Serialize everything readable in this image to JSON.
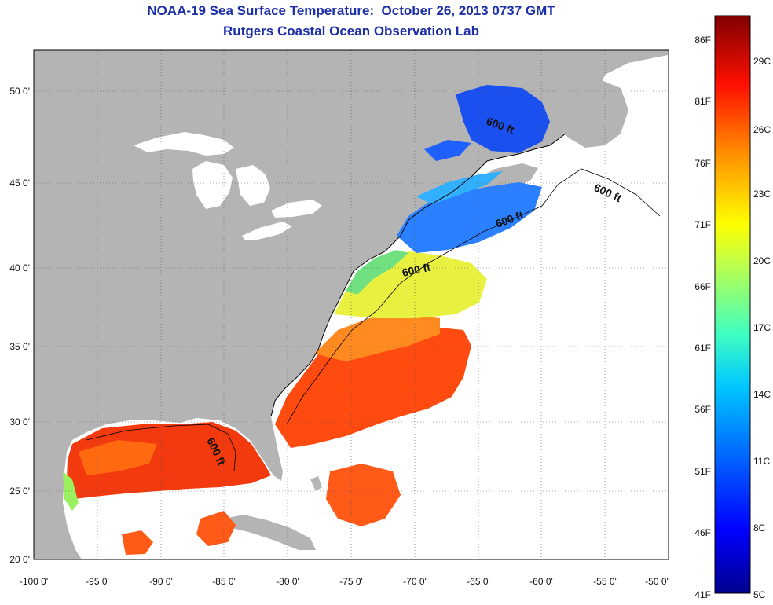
{
  "title": {
    "line1": "NOAA-19 Sea Surface Temperature:  October 26, 2013 0737 GMT",
    "line2": "Rutgers Coastal Ocean Observation Lab"
  },
  "axes": {
    "x_ticks": [
      "-100 0'",
      "-95 0'",
      "-90 0'",
      "-85 0'",
      "-80 0'",
      "-75 0'",
      "-70 0'",
      "-65 0'",
      "-60 0'",
      "-55 0'",
      "-50 0'"
    ],
    "y_ticks": [
      "50 0'",
      "45 0'",
      "40 0'",
      "35 0'",
      "30 0'",
      "25 0'",
      "20 0'"
    ]
  },
  "contour_labels": [
    "600 ft",
    "600 ft",
    "600 ft",
    "600 ft",
    "600 ft"
  ],
  "colorbar": {
    "fahrenheit": [
      "86F",
      "81F",
      "76F",
      "71F",
      "66F",
      "61F",
      "56F",
      "51F",
      "46F",
      "41F"
    ],
    "celsius": [
      "29C",
      "26C",
      "23C",
      "20C",
      "17C",
      "14C",
      "11C",
      "8C",
      "5C"
    ],
    "colors": [
      "#00008f",
      "#0000ff",
      "#0080ff",
      "#00ffff",
      "#80ff80",
      "#ffff00",
      "#ff8000",
      "#ff0000",
      "#800000"
    ]
  },
  "colors": {
    "land": "#b4b4b4",
    "water_no_data": "#ffffff",
    "title": "#1c2fa8",
    "frame": "#000000"
  }
}
